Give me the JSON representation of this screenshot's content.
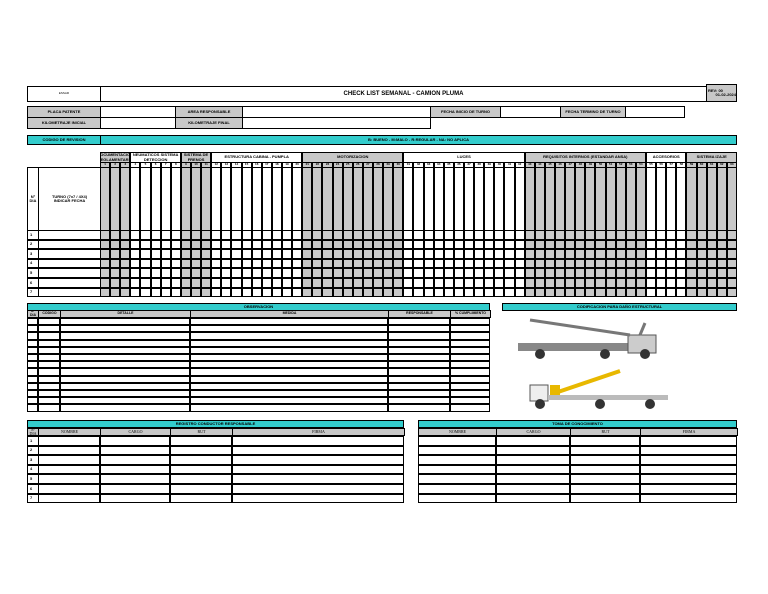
{
  "header": {
    "logo_text": "ESSAR",
    "title": "CHECK LIST SEMANAL - CAMION PLUMA",
    "rev": "REV: 00",
    "rev_date": "01-02-2024"
  },
  "fields": {
    "placa": "PLACA PATENTE",
    "area": "AREA RESPONSABLE",
    "fecha_inicio": "FECHA INICIO DE TURNO",
    "fecha_termino": "FECHA TERMINO DE TURNO",
    "km_inicial": "KILOMETRAJE INICIAL",
    "km_final": "KILOMETRAJE FINAL"
  },
  "codes": {
    "label": "CODIGO DE REVISION",
    "legend": "B: BUENO - M:MALO - R:REGULAR - NA: NO APLICA"
  },
  "checklist": {
    "n_label": "N° DIA",
    "turno_label": "TURNO (7x7 / 4X4)",
    "fecha_label": "INDICAR FECHA",
    "groups": [
      {
        "name": "DOCUMENTACION REGLAMENTARIA",
        "cols": 3,
        "shade": true
      },
      {
        "name": "NEUMATICOS SISTEMA DETECCION",
        "cols": 5,
        "shade": false
      },
      {
        "name": "SISTEMA DE FRENOS",
        "cols": 3,
        "shade": true
      },
      {
        "name": "ESTRUCTURA CABINA - PUMPLA",
        "cols": 9,
        "shade": false
      },
      {
        "name": "MOTORIZACION",
        "cols": 10,
        "shade": true
      },
      {
        "name": "LUCES",
        "cols": 12,
        "shade": false
      },
      {
        "name": "REQUISITOS INTERNOS (ESTANDAR ANSA)",
        "cols": 12,
        "shade": true
      },
      {
        "name": "ACCESORIOS",
        "cols": 4,
        "shade": false
      },
      {
        "name": "SISTEMA IZAJE",
        "cols": 5,
        "shade": true
      }
    ],
    "rows": [
      "1",
      "2",
      "3",
      "4",
      "5",
      "6",
      "7"
    ]
  },
  "observacion": {
    "title": "OBSERVACION",
    "headers": [
      "N° DIA",
      "CODIGO",
      "DETALLE",
      "MEDIDA",
      "RESPONSABLE",
      "% CUMPLIMIENTO"
    ]
  },
  "codificacion": {
    "title": "CODIFICACION PARA DAÑO ESTRUCTURAL"
  },
  "conductor": {
    "title": "REGISTRO CONDUCTOR RESPONSABLE",
    "headers": [
      "N° DIA",
      "NOMBRE",
      "CARGO",
      "RUT",
      "FIRMA"
    ],
    "rows": [
      "1",
      "2",
      "3",
      "4",
      "5",
      "6",
      "7"
    ]
  },
  "toma": {
    "title": "TOMA DE CONOCIMIENTO",
    "headers": [
      "NOMBRE",
      "CARGO",
      "RUT",
      "FIRMA"
    ]
  },
  "colors": {
    "accent": "#33cccc",
    "shade": "#c8c8c8"
  }
}
